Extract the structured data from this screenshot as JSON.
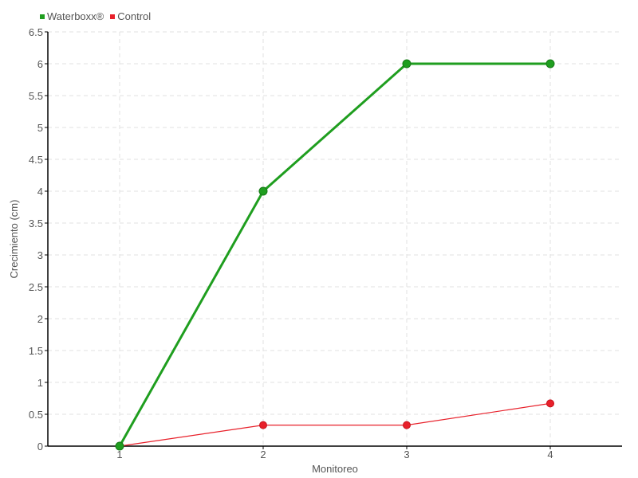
{
  "chart_data": {
    "type": "line",
    "categories": [
      "1",
      "2",
      "3",
      "4"
    ],
    "xlabel": "Monitoreo",
    "ylabel": "Crecimiento (cm)",
    "ylim": [
      0,
      6.5
    ],
    "yticks": [
      "0",
      "0.5",
      "1",
      "1.5",
      "2",
      "2.5",
      "3",
      "3.5",
      "4",
      "4.5",
      "5",
      "5.5",
      "6",
      "6.5"
    ],
    "grid": true,
    "legend_position": "top-left",
    "series": [
      {
        "name": "Waterboxx®",
        "values": [
          0,
          4,
          6,
          6
        ],
        "color": "#1f9e1f"
      },
      {
        "name": "Control",
        "values": [
          0,
          0.33,
          0.33,
          0.67
        ],
        "color": "#e8202a"
      }
    ]
  }
}
